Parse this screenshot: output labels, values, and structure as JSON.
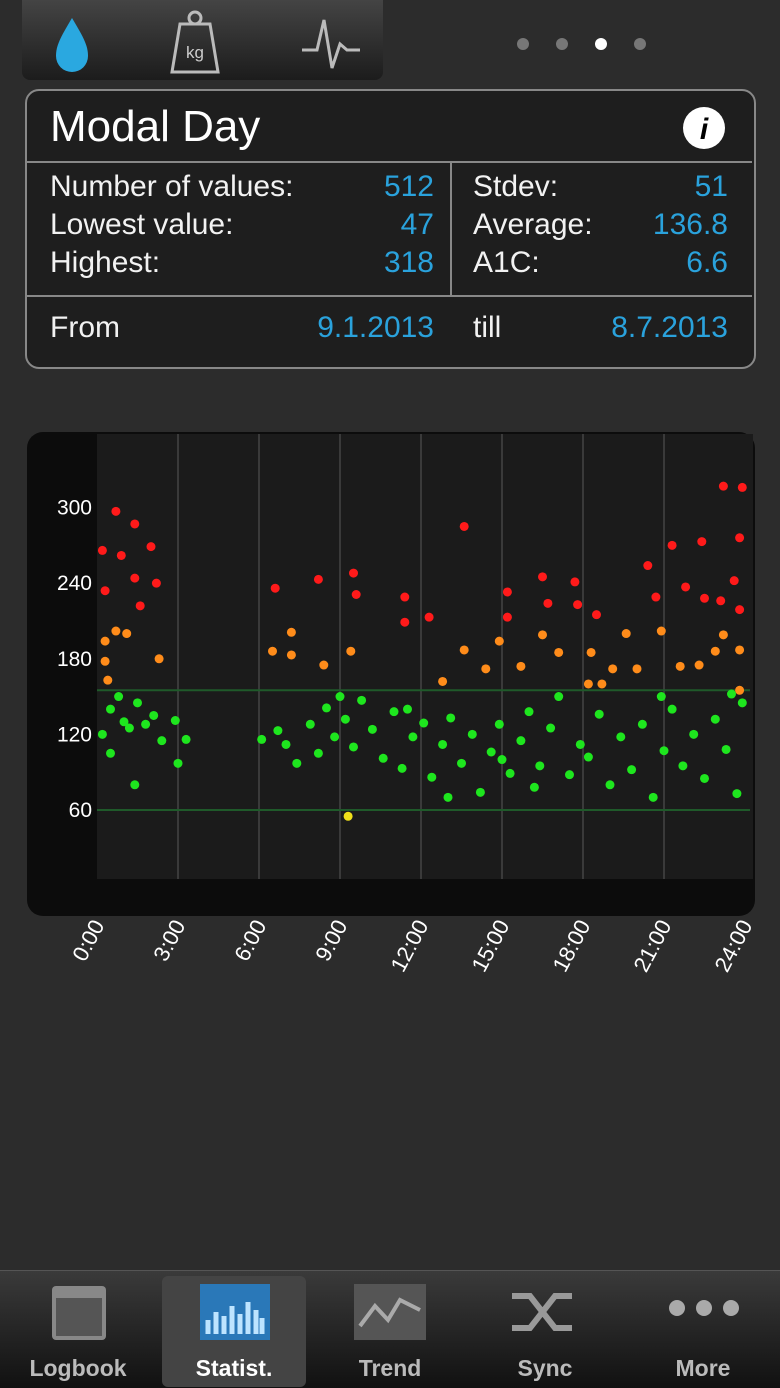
{
  "header": {
    "weight_icon_label": "kg",
    "title": "Modal Day"
  },
  "stats": {
    "left": [
      {
        "label": "Number of values:",
        "value": 512
      },
      {
        "label": "Lowest value:",
        "value": 47
      },
      {
        "label": "Highest:",
        "value": 318
      }
    ],
    "right": [
      {
        "label": "Stdev:",
        "value": 51
      },
      {
        "label": "Average:",
        "value": 136.8
      },
      {
        "label": "A1C:",
        "value": 6.6
      }
    ],
    "from_label": "From",
    "from": "9.1.2013",
    "till_label": "till",
    "till": "8.7.2013"
  },
  "chart_data": {
    "type": "scatter",
    "xlim": [
      0,
      24
    ],
    "xticks": [
      {
        "value": 0,
        "label": "0:00"
      },
      {
        "value": 3,
        "label": "3:00"
      },
      {
        "value": 6,
        "label": "6:00"
      },
      {
        "value": 9,
        "label": "9:00"
      },
      {
        "value": 12,
        "label": "12:00"
      },
      {
        "value": 15,
        "label": "15:00"
      },
      {
        "value": 18,
        "label": "18:00"
      },
      {
        "value": 21,
        "label": "21:00"
      },
      {
        "value": 24,
        "label": "24:00"
      }
    ],
    "ylim": [
      6,
      356
    ],
    "yticks": [
      60,
      120,
      180,
      240,
      300
    ],
    "ref_lines": [
      60,
      155
    ],
    "grid_color": "#3a3a3a",
    "ref_color": "#1f5a2a",
    "series": [
      {
        "color": "#ff1a1a",
        "x": [
          0.2,
          0.3,
          0.7,
          0.9,
          1.4,
          1.4,
          2.0,
          2.2,
          1.6,
          6.6,
          8.2,
          9.5,
          9.6,
          11.4,
          11.4,
          13.6,
          12.3,
          15.2,
          15.2,
          16.5,
          16.7,
          17.7,
          17.8,
          18.5,
          20.4,
          21.3,
          21.8,
          22.4,
          22.5,
          23.2,
          23.9,
          23.8,
          23.8,
          23.6,
          23.1,
          20.7
        ],
        "values": [
          266,
          234,
          297,
          262,
          287,
          244,
          269,
          240,
          222,
          236,
          243,
          248,
          231,
          229,
          209,
          285,
          213,
          233,
          213,
          245,
          224,
          241,
          223,
          215,
          254,
          270,
          237,
          273,
          228,
          317,
          316,
          276,
          219,
          242,
          226,
          229
        ]
      },
      {
        "color": "#ff8c1a",
        "x": [
          0.3,
          0.3,
          0.4,
          0.7,
          1.1,
          2.3,
          6.5,
          7.2,
          7.2,
          9.4,
          8.4,
          12.8,
          13.6,
          14.4,
          14.9,
          15.7,
          16.5,
          17.1,
          18.3,
          18.2,
          19.1,
          19.6,
          20.0,
          20.9,
          21.6,
          22.3,
          22.9,
          23.2,
          23.8,
          23.8,
          18.7
        ],
        "values": [
          194,
          178,
          163,
          202,
          200,
          180,
          186,
          201,
          183,
          186,
          175,
          162,
          187,
          172,
          194,
          174,
          199,
          185,
          185,
          160,
          172,
          200,
          172,
          202,
          174,
          175,
          186,
          199,
          187,
          155,
          160
        ]
      },
      {
        "color": "#1ee61e",
        "x": [
          0.2,
          0.5,
          0.8,
          1.0,
          1.2,
          1.5,
          1.8,
          2.1,
          2.4,
          1.4,
          0.5,
          2.9,
          3.0,
          3.3,
          6.1,
          6.7,
          7.0,
          7.4,
          7.9,
          8.2,
          8.5,
          8.8,
          9.2,
          9.5,
          9.8,
          10.2,
          10.6,
          11.0,
          11.3,
          11.7,
          12.1,
          12.4,
          12.8,
          13.1,
          13.5,
          13.9,
          14.2,
          14.6,
          14.9,
          15.3,
          15.7,
          16.0,
          16.4,
          16.8,
          17.1,
          17.5,
          17.9,
          18.2,
          18.6,
          19.0,
          19.4,
          19.8,
          20.2,
          20.6,
          21.0,
          21.3,
          21.7,
          22.1,
          22.5,
          22.9,
          23.3,
          23.7,
          23.9,
          23.5,
          20.9,
          15.0,
          11.5,
          9.0,
          13.0,
          16.2
        ],
        "values": [
          120,
          140,
          150,
          130,
          125,
          145,
          128,
          135,
          115,
          80,
          105,
          131,
          97,
          116,
          116,
          123,
          112,
          97,
          128,
          105,
          141,
          118,
          132,
          110,
          147,
          124,
          101,
          138,
          93,
          118,
          129,
          86,
          112,
          133,
          97,
          120,
          74,
          106,
          128,
          89,
          115,
          138,
          95,
          125,
          150,
          88,
          112,
          102,
          136,
          80,
          118,
          92,
          128,
          70,
          107,
          140,
          95,
          120,
          85,
          132,
          108,
          73,
          145,
          152,
          150,
          100,
          140,
          150,
          70,
          78
        ]
      },
      {
        "color": "#f0e01a",
        "x": [
          9.3
        ],
        "values": [
          55
        ]
      }
    ]
  },
  "tabbar": {
    "items": [
      "Logbook",
      "Statist.",
      "Trend",
      "Sync",
      "More"
    ]
  }
}
